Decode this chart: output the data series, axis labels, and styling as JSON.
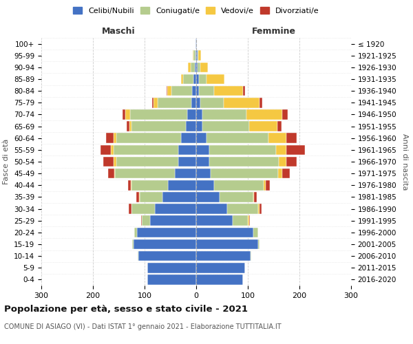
{
  "age_groups": [
    "0-4",
    "5-9",
    "10-14",
    "15-19",
    "20-24",
    "25-29",
    "30-34",
    "35-39",
    "40-44",
    "45-49",
    "50-54",
    "55-59",
    "60-64",
    "65-69",
    "70-74",
    "75-79",
    "80-84",
    "85-89",
    "90-94",
    "95-99",
    "100+"
  ],
  "birth_years": [
    "2016-2020",
    "2011-2015",
    "2006-2010",
    "2001-2005",
    "1996-2000",
    "1991-1995",
    "1986-1990",
    "1981-1985",
    "1976-1980",
    "1971-1975",
    "1966-1970",
    "1961-1965",
    "1956-1960",
    "1951-1955",
    "1946-1950",
    "1941-1945",
    "1936-1940",
    "1931-1935",
    "1926-1930",
    "1921-1925",
    "≤ 1920"
  ],
  "maschi": {
    "celibi": [
      95,
      95,
      112,
      122,
      115,
      90,
      80,
      65,
      55,
      42,
      35,
      35,
      30,
      20,
      18,
      10,
      8,
      5,
      3,
      2,
      1
    ],
    "coniugati": [
      0,
      0,
      1,
      2,
      5,
      15,
      45,
      45,
      70,
      115,
      120,
      125,
      125,
      105,
      110,
      65,
      40,
      20,
      8,
      3,
      0
    ],
    "vedovi": [
      0,
      0,
      0,
      0,
      0,
      0,
      1,
      1,
      2,
      2,
      5,
      5,
      5,
      5,
      10,
      8,
      8,
      5,
      5,
      2,
      0
    ],
    "divorziati": [
      0,
      0,
      0,
      0,
      0,
      2,
      5,
      5,
      5,
      12,
      20,
      20,
      15,
      5,
      5,
      2,
      2,
      0,
      0,
      0,
      0
    ]
  },
  "femmine": {
    "nubili": [
      90,
      95,
      105,
      120,
      110,
      70,
      60,
      45,
      35,
      28,
      25,
      25,
      20,
      12,
      12,
      8,
      5,
      5,
      3,
      2,
      1
    ],
    "coniugate": [
      0,
      0,
      1,
      3,
      10,
      30,
      60,
      65,
      95,
      130,
      135,
      130,
      120,
      90,
      85,
      45,
      30,
      15,
      5,
      2,
      0
    ],
    "vedove": [
      0,
      0,
      0,
      0,
      0,
      2,
      2,
      2,
      5,
      8,
      15,
      20,
      35,
      55,
      70,
      70,
      55,
      35,
      15,
      5,
      0
    ],
    "divorziate": [
      0,
      0,
      0,
      0,
      0,
      2,
      5,
      5,
      8,
      15,
      20,
      35,
      20,
      8,
      10,
      5,
      5,
      0,
      0,
      0,
      0
    ]
  },
  "colors": {
    "celibi_nubili": "#4472C4",
    "coniugati": "#B5CC8E",
    "vedovi": "#F5C842",
    "divorziati": "#C0392B"
  },
  "xlim": 300,
  "title": "Popolazione per età, sesso e stato civile - 2021",
  "subtitle": "COMUNE DI ASIAGO (VI) - Dati ISTAT 1° gennaio 2021 - Elaborazione TUTTITALIA.IT",
  "xlabel_left": "Maschi",
  "xlabel_right": "Femmine",
  "ylabel_left": "Fasce di età",
  "ylabel_right": "Anni di nascita",
  "legend": [
    "Celibi/Nubili",
    "Coniugati/e",
    "Vedovi/e",
    "Divorziati/e"
  ],
  "background_color": "#ffffff"
}
